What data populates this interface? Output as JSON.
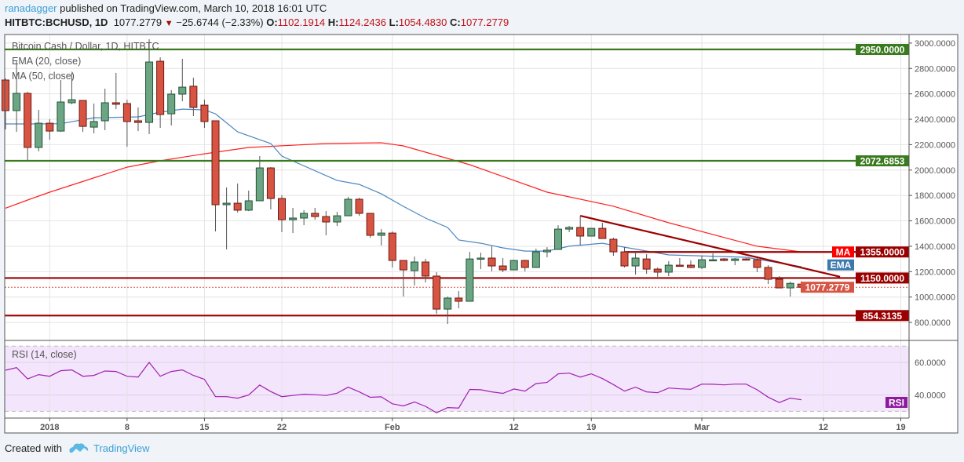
{
  "header": {
    "author": "ranadagger",
    "published": "published on TradingView.com, March 10, 2018 16:01 UTC",
    "symbol": "HITBTC:BCHUSD, 1D",
    "last": "1077.2779",
    "change": "−25.6744 (−2.33%)",
    "o_label": "O:",
    "o": "1102.1914",
    "h_label": "H:",
    "h": "1124.2436",
    "l_label": "L:",
    "l": "1054.4830",
    "c_label": "C:",
    "c": "1077.2779",
    "down_icon": "triangle-down-icon"
  },
  "legend": {
    "title": "Bitcoin Cash / Dollar, 1D, HITBTC",
    "ema": "EMA (20, close)",
    "ma": "MA (50, close)",
    "rsi": "RSI (14, close)"
  },
  "footer": {
    "created": "Created with",
    "brand": "TradingView",
    "logo_icon": "tradingview-cloud-icon"
  },
  "colors": {
    "up": "#6ba583",
    "down": "#d75442",
    "ema": "#4a86c0",
    "ma": "#ff2020",
    "rsi": "#a020b0",
    "green_level": "#3a7a1e",
    "red_level": "#9b0000"
  },
  "chart_data": {
    "type": "candlestick",
    "title": "Bitcoin Cash / Dollar, 1D, HITBTC",
    "start_date": "2017-12-28",
    "ohlc": [
      [
        2709,
        2720,
        2320,
        2468
      ],
      [
        2468,
        2863,
        2301,
        2604
      ],
      [
        2604,
        2616,
        2073,
        2178
      ],
      [
        2178,
        2474,
        2147,
        2369
      ],
      [
        2369,
        2400,
        2239,
        2307
      ],
      [
        2307,
        2709,
        2301,
        2536
      ],
      [
        2530,
        2765,
        2518,
        2554
      ],
      [
        2548,
        2548,
        2301,
        2344
      ],
      [
        2338,
        2524,
        2289,
        2382
      ],
      [
        2388,
        2641,
        2314,
        2530
      ],
      [
        2530,
        2765,
        2480,
        2518
      ],
      [
        2524,
        2554,
        2184,
        2382
      ],
      [
        2388,
        2493,
        2307,
        2375
      ],
      [
        2375,
        3030,
        2283,
        2851
      ],
      [
        2857,
        2888,
        2332,
        2437
      ],
      [
        2443,
        2629,
        2351,
        2598
      ],
      [
        2598,
        2876,
        2542,
        2653
      ],
      [
        2660,
        2727,
        2425,
        2493
      ],
      [
        2511,
        2554,
        2332,
        2382
      ],
      [
        2388,
        2388,
        1517,
        1727
      ],
      [
        1727,
        1863,
        1375,
        1739
      ],
      [
        1739,
        1894,
        1665,
        1684
      ],
      [
        1684,
        1838,
        1677,
        1758
      ],
      [
        1758,
        2110,
        1758,
        2017
      ],
      [
        2017,
        2023,
        1690,
        1776
      ],
      [
        1776,
        1801,
        1511,
        1609
      ],
      [
        1609,
        1702,
        1504,
        1622
      ],
      [
        1622,
        1684,
        1566,
        1659
      ],
      [
        1659,
        1702,
        1609,
        1634
      ],
      [
        1634,
        1677,
        1486,
        1591
      ],
      [
        1591,
        1671,
        1560,
        1640
      ],
      [
        1640,
        1789,
        1640,
        1770
      ],
      [
        1770,
        1782,
        1640,
        1659
      ],
      [
        1659,
        1659,
        1467,
        1486
      ],
      [
        1486,
        1535,
        1406,
        1504
      ],
      [
        1504,
        1517,
        1233,
        1288
      ],
      [
        1288,
        1288,
        1004,
        1214
      ],
      [
        1208,
        1319,
        1091,
        1276
      ],
      [
        1276,
        1300,
        1115,
        1165
      ],
      [
        1165,
        1196,
        868,
        905
      ],
      [
        905,
        1004,
        788,
        992
      ],
      [
        992,
        1047,
        911,
        967
      ],
      [
        967,
        1356,
        967,
        1300
      ],
      [
        1300,
        1350,
        1220,
        1307
      ],
      [
        1307,
        1400,
        1202,
        1245
      ],
      [
        1245,
        1307,
        1196,
        1214
      ],
      [
        1214,
        1294,
        1214,
        1288
      ],
      [
        1288,
        1294,
        1202,
        1233
      ],
      [
        1233,
        1381,
        1233,
        1356
      ],
      [
        1356,
        1393,
        1313,
        1369
      ],
      [
        1375,
        1566,
        1375,
        1535
      ],
      [
        1535,
        1560,
        1511,
        1548
      ],
      [
        1548,
        1640,
        1406,
        1480
      ],
      [
        1480,
        1541,
        1480,
        1541
      ],
      [
        1541,
        1585,
        1461,
        1461
      ],
      [
        1455,
        1467,
        1325,
        1356
      ],
      [
        1356,
        1393,
        1233,
        1245
      ],
      [
        1245,
        1356,
        1177,
        1307
      ],
      [
        1300,
        1338,
        1183,
        1220
      ],
      [
        1220,
        1233,
        1158,
        1196
      ],
      [
        1196,
        1282,
        1165,
        1251
      ],
      [
        1251,
        1307,
        1239,
        1245
      ],
      [
        1251,
        1288,
        1227,
        1233
      ],
      [
        1233,
        1325,
        1220,
        1294
      ],
      [
        1288,
        1344,
        1282,
        1294
      ],
      [
        1300,
        1307,
        1282,
        1288
      ],
      [
        1288,
        1307,
        1251,
        1300
      ],
      [
        1300,
        1307,
        1288,
        1294
      ],
      [
        1294,
        1307,
        1196,
        1233
      ],
      [
        1233,
        1251,
        1103,
        1140
      ],
      [
        1140,
        1165,
        1072,
        1072
      ],
      [
        1072,
        1121,
        1004,
        1108
      ],
      [
        1102.19,
        1124.24,
        1054.48,
        1077.28
      ]
    ],
    "ema20": [
      [
        0,
        2363
      ],
      [
        3,
        2363
      ],
      [
        5,
        2365
      ],
      [
        8,
        2412
      ],
      [
        12,
        2419
      ],
      [
        14,
        2456
      ],
      [
        16,
        2480
      ],
      [
        18,
        2474
      ],
      [
        19,
        2443
      ],
      [
        21,
        2301
      ],
      [
        23,
        2239
      ],
      [
        24,
        2209
      ],
      [
        25,
        2110
      ],
      [
        30,
        1918
      ],
      [
        32,
        1887
      ],
      [
        34,
        1813
      ],
      [
        36,
        1714
      ],
      [
        38,
        1622
      ],
      [
        40,
        1548
      ],
      [
        41,
        1449
      ],
      [
        43,
        1424
      ],
      [
        45,
        1387
      ],
      [
        47,
        1362
      ],
      [
        49,
        1362
      ],
      [
        51,
        1400
      ],
      [
        54,
        1424
      ],
      [
        56,
        1393
      ],
      [
        60,
        1332
      ],
      [
        67,
        1313
      ],
      [
        72,
        1239
      ]
    ],
    "ma50": [
      [
        0,
        1700
      ],
      [
        2,
        1764
      ],
      [
        4,
        1826
      ],
      [
        11,
        2023
      ],
      [
        14,
        2073
      ],
      [
        18,
        2128
      ],
      [
        22,
        2178
      ],
      [
        29,
        2209
      ],
      [
        34,
        2215
      ],
      [
        36,
        2190
      ],
      [
        42,
        2042
      ],
      [
        49,
        1826
      ],
      [
        55,
        1715
      ],
      [
        60,
        1585
      ],
      [
        68,
        1400
      ],
      [
        72,
        1356
      ]
    ],
    "rsi": [
      55.2,
      56.8,
      49.9,
      52.5,
      51.5,
      54.9,
      55.4,
      51.5,
      52.0,
      54.7,
      54.4,
      51.5,
      51.0,
      60.0,
      51.5,
      54.4,
      55.4,
      52.0,
      49.6,
      39.0,
      39.0,
      38.1,
      40.0,
      46.1,
      42.1,
      39.0,
      39.7,
      40.5,
      40.2,
      39.7,
      41.1,
      44.8,
      41.9,
      38.6,
      38.9,
      34.6,
      33.3,
      35.7,
      33.1,
      29.1,
      32.3,
      32.0,
      43.4,
      43.2,
      41.9,
      41.0,
      43.7,
      42.4,
      47.0,
      47.7,
      53.0,
      53.4,
      51.0,
      53.0,
      50.1,
      46.4,
      42.4,
      44.8,
      41.9,
      41.4,
      44.3,
      43.8,
      43.5,
      46.7,
      46.6,
      46.2,
      46.7,
      46.7,
      43.2,
      38.7,
      35.4,
      38.1,
      37.1
    ],
    "levels": [
      {
        "value": 2950,
        "label": "2950.0000",
        "kind": "green",
        "from_index": -1
      },
      {
        "value": 2072.6853,
        "label": "2072.6853",
        "kind": "green",
        "from_index": -1
      },
      {
        "value": 1355,
        "label": "1355.0000",
        "kind": "red",
        "from_index": 56
      },
      {
        "value": 1150,
        "label": "1150.0000",
        "kind": "red",
        "from_index": -1
      },
      {
        "value": 854.3135,
        "label": "854.3135",
        "kind": "red",
        "from_index": -1
      }
    ],
    "trendline": [
      [
        52,
        1640
      ],
      [
        75.5,
        1160
      ]
    ],
    "last_price_label": "1077.2779",
    "ma_tag": "MA",
    "ema_tag": "EMA",
    "rsi_tag": "RSI",
    "price_ticks": [
      "800.0000",
      "1000.0000",
      "1200.0000",
      "1400.0000",
      "1600.0000",
      "1800.0000",
      "2000.0000",
      "2200.0000",
      "2400.0000",
      "2600.0000",
      "2800.0000",
      "3000.0000"
    ],
    "rsi_ticks": [
      "40.0000",
      "60.0000"
    ],
    "date_ticks": [
      {
        "i": 4,
        "label": "2018"
      },
      {
        "i": 11,
        "label": "8"
      },
      {
        "i": 18,
        "label": "15"
      },
      {
        "i": 25,
        "label": "22"
      },
      {
        "i": 35,
        "label": "Feb"
      },
      {
        "i": 46,
        "label": "12"
      },
      {
        "i": 53,
        "label": "19"
      },
      {
        "i": 63,
        "label": "Mar"
      },
      {
        "i": 74,
        "label": "12"
      },
      {
        "i": 81,
        "label": "19"
      }
    ],
    "ylim": [
      750,
      3050
    ],
    "rsi_band": [
      30,
      70
    ]
  }
}
